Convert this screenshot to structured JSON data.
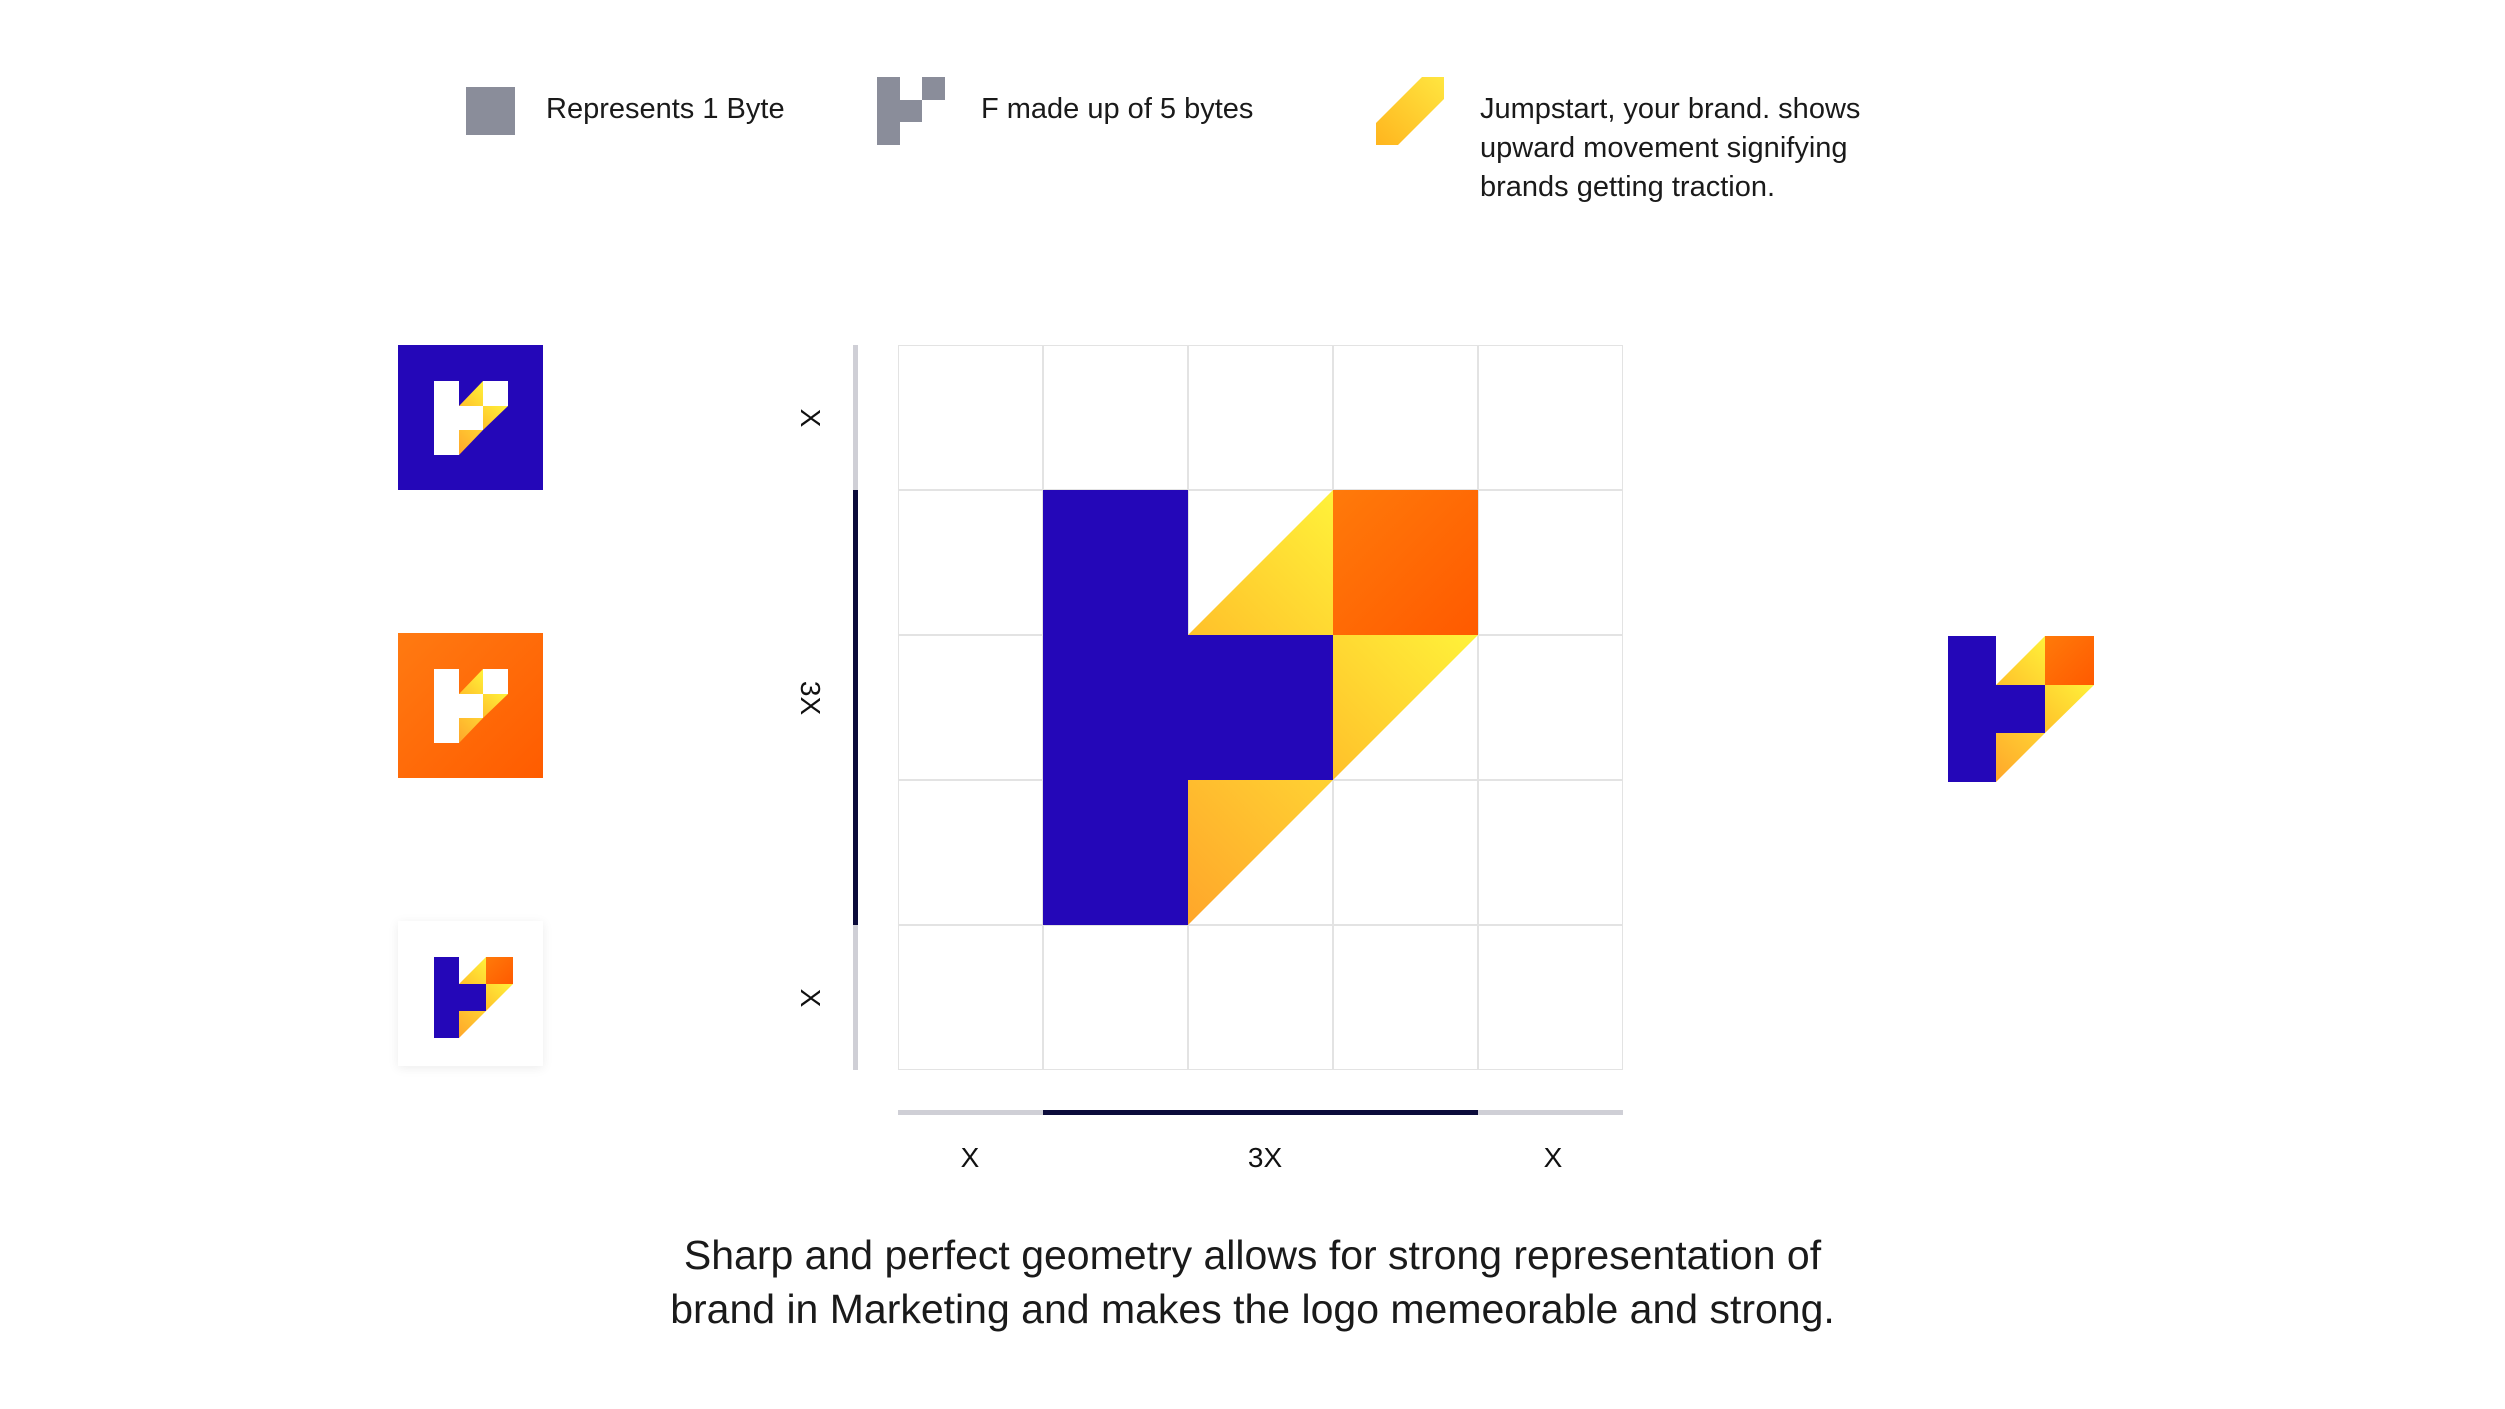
{
  "legend": [
    {
      "icon": "byte-square-icon",
      "text": "Represents 1 Byte"
    },
    {
      "icon": "f-five-bytes-icon",
      "text": "F made up of 5 bytes"
    },
    {
      "icon": "jumpstart-arrow-icon",
      "lines": [
        "Jumpstart, your brand. shows",
        "upward movement signifying",
        "brands getting traction."
      ]
    }
  ],
  "dimensions": {
    "vertical": [
      "X",
      "3X",
      "X"
    ],
    "horizontal": [
      "X",
      "3X",
      "X"
    ]
  },
  "caption": {
    "lines": [
      "Sharp and perfect geometry allows for strong representation of",
      "brand in Marketing and makes the logo memeorable and strong."
    ]
  },
  "colors": {
    "indigo": "#2407B8",
    "orange": "#FF6A00",
    "orange_light": "#FF8A1E",
    "yellow": "#FFE833",
    "amber": "#FFB12B",
    "gray_byte": "#8A8D9A",
    "dim_dark": "#0B0B3B",
    "dim_light": "#CFCFD6",
    "grid_line": "#E3E3E3"
  },
  "variants": [
    {
      "name": "logo-indigo-tile",
      "background": "indigo"
    },
    {
      "name": "logo-orange-tile",
      "background": "orange"
    },
    {
      "name": "logo-white-tile",
      "background": "white"
    }
  ]
}
